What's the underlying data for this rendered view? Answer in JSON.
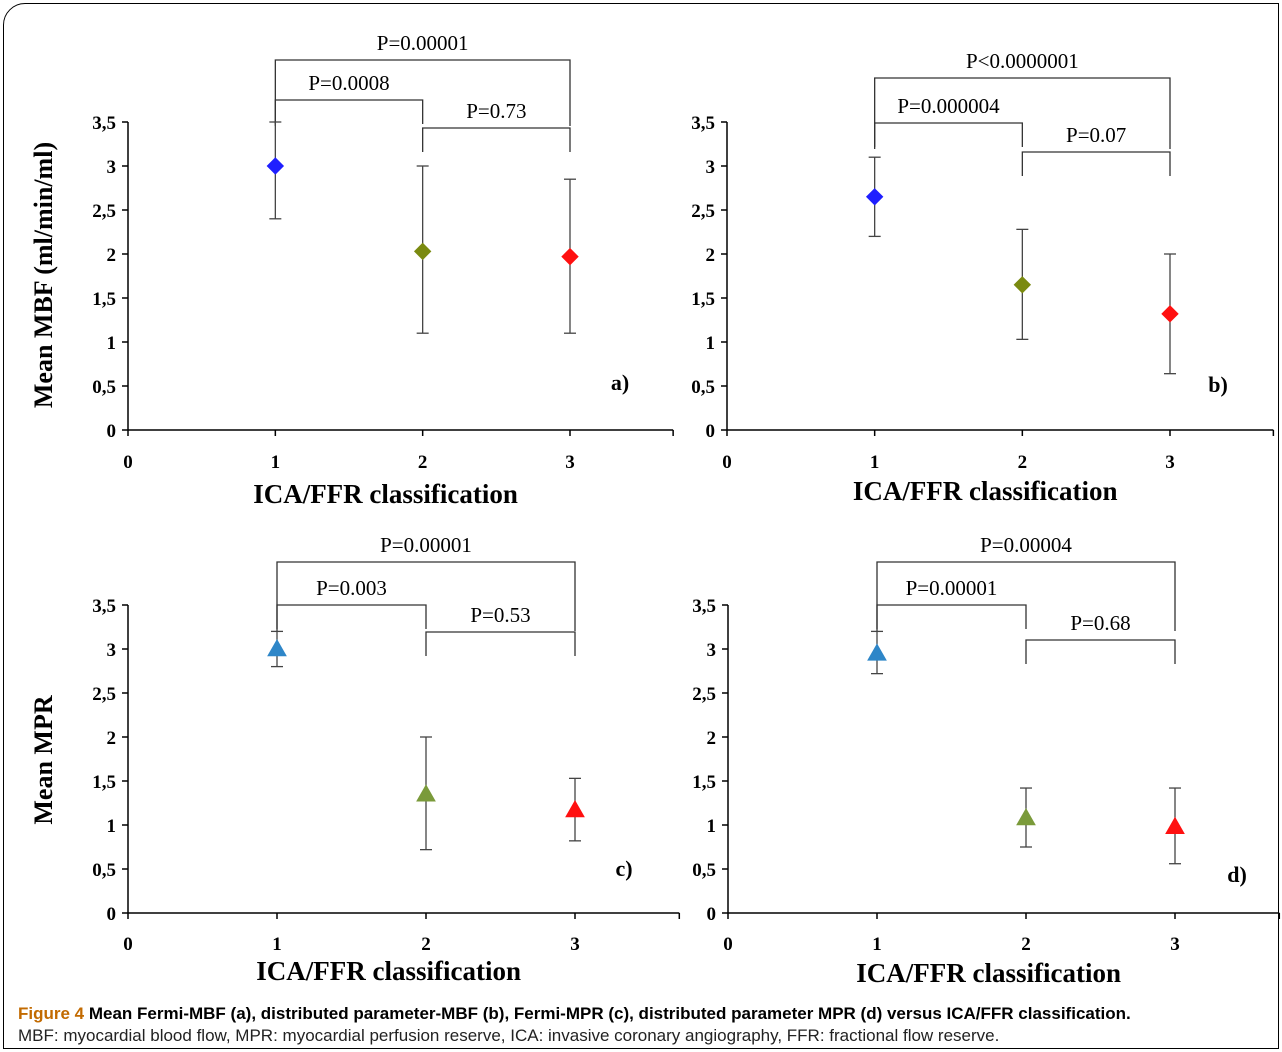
{
  "caption": {
    "figure_label": "Figure 4",
    "title": "Mean Fermi-MBF (a), distributed parameter-MBF (b), Fermi-MPR (c), distributed parameter MPR (d) versus ICA/FFR classification.",
    "note": "MBF: myocardial blood flow, MPR: myocardial perfusion reserve, ICA: invasive coronary angiography, FFR: fractional flow reserve."
  },
  "chart_data": [
    {
      "type": "scatter",
      "panel_label": "a)",
      "xlabel": "ICA/FFR classification",
      "ylabel": "Mean MBF (ml/min/ml)",
      "xlim": [
        0,
        3.7
      ],
      "ylim": [
        0,
        3.5
      ],
      "x_ticks": [
        "0",
        "1",
        "2",
        "3"
      ],
      "y_ticks": [
        "0",
        "0,5",
        "1",
        "1,5",
        "2",
        "2,5",
        "3",
        "3,5"
      ],
      "marker": "diamond",
      "points": [
        {
          "x": 1,
          "y": 3.0,
          "low": 2.4,
          "high": 3.5,
          "color": "#1f1fff"
        },
        {
          "x": 2,
          "y": 2.03,
          "low": 1.1,
          "high": 3.0,
          "color": "#7a8a10"
        },
        {
          "x": 3,
          "y": 1.97,
          "low": 1.1,
          "high": 2.85,
          "color": "#ff1010"
        }
      ],
      "brackets": [
        {
          "from": 1,
          "to": 3,
          "label": "P=0.00001",
          "level": 2
        },
        {
          "from": 1,
          "to": 2,
          "label": "P=0.0008",
          "level": 1
        },
        {
          "from": 2,
          "to": 3,
          "label": "P=0.73",
          "level": 0
        }
      ]
    },
    {
      "type": "scatter",
      "panel_label": "b)",
      "xlabel": "ICA/FFR classification",
      "ylabel": "",
      "xlim": [
        0,
        3.7
      ],
      "ylim": [
        0,
        3.5
      ],
      "x_ticks": [
        "0",
        "1",
        "2",
        "3"
      ],
      "y_ticks": [
        "0",
        "0,5",
        "1",
        "1,5",
        "2",
        "2,5",
        "3",
        "3,5"
      ],
      "marker": "diamond",
      "points": [
        {
          "x": 1,
          "y": 2.65,
          "low": 2.2,
          "high": 3.1,
          "color": "#1f1fff"
        },
        {
          "x": 2,
          "y": 1.65,
          "low": 1.03,
          "high": 2.28,
          "color": "#7a8a10"
        },
        {
          "x": 3,
          "y": 1.32,
          "low": 0.64,
          "high": 2.0,
          "color": "#ff1010"
        }
      ],
      "brackets": [
        {
          "from": 1,
          "to": 3,
          "label": "P<0.0000001",
          "level": 2
        },
        {
          "from": 1,
          "to": 2,
          "label": "P=0.000004",
          "level": 1
        },
        {
          "from": 2,
          "to": 3,
          "label": "P=0.07",
          "level": 0
        }
      ]
    },
    {
      "type": "scatter",
      "panel_label": "c)",
      "xlabel": "ICA/FFR classification",
      "ylabel": "Mean MPR",
      "xlim": [
        0,
        3.7
      ],
      "ylim": [
        0,
        3.5
      ],
      "x_ticks": [
        "0",
        "1",
        "2",
        "3"
      ],
      "y_ticks": [
        "0",
        "0,5",
        "1",
        "1,5",
        "2",
        "2,5",
        "3",
        "3,5"
      ],
      "marker": "triangle",
      "points": [
        {
          "x": 1,
          "y": 3.0,
          "low": 2.8,
          "high": 3.2,
          "color": "#2e86c8"
        },
        {
          "x": 2,
          "y": 1.35,
          "low": 0.72,
          "high": 2.0,
          "color": "#7a9a3a"
        },
        {
          "x": 3,
          "y": 1.17,
          "low": 0.82,
          "high": 1.53,
          "color": "#ff1010"
        }
      ],
      "brackets": [
        {
          "from": 1,
          "to": 3,
          "label": "P=0.00001",
          "level": 2
        },
        {
          "from": 1,
          "to": 2,
          "label": "P=0.003",
          "level": 1
        },
        {
          "from": 2,
          "to": 3,
          "label": "P=0.53",
          "level": 0
        }
      ]
    },
    {
      "type": "scatter",
      "panel_label": "d)",
      "xlabel": "ICA/FFR classification",
      "ylabel": "",
      "xlim": [
        0,
        3.7
      ],
      "ylim": [
        0,
        3.5
      ],
      "x_ticks": [
        "0",
        "1",
        "2",
        "3"
      ],
      "y_ticks": [
        "0",
        "0,5",
        "1",
        "1,5",
        "2",
        "2,5",
        "3",
        "3,5"
      ],
      "marker": "triangle",
      "points": [
        {
          "x": 1,
          "y": 2.95,
          "low": 2.72,
          "high": 3.2,
          "color": "#2e86c8"
        },
        {
          "x": 2,
          "y": 1.08,
          "low": 0.75,
          "high": 1.42,
          "color": "#7a9a3a"
        },
        {
          "x": 3,
          "y": 0.98,
          "low": 0.56,
          "high": 1.42,
          "color": "#ff1010"
        }
      ],
      "brackets": [
        {
          "from": 1,
          "to": 3,
          "label": "P=0.00004",
          "level": 2
        },
        {
          "from": 1,
          "to": 2,
          "label": "P=0.00001",
          "level": 1
        },
        {
          "from": 2,
          "to": 3,
          "label": "P=0.68",
          "level": 0
        }
      ]
    }
  ]
}
